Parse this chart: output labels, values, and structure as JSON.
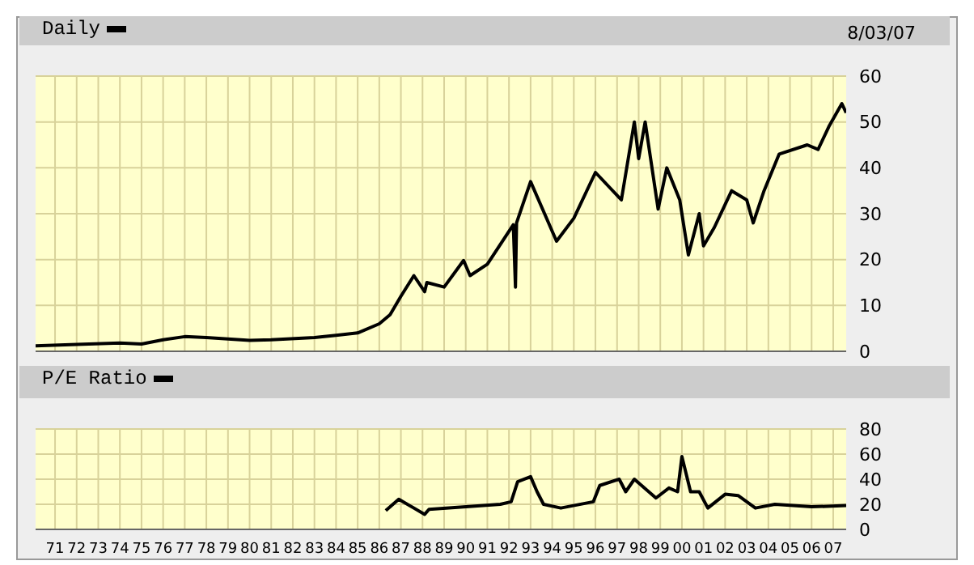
{
  "chart_data": [
    {
      "type": "line",
      "annotations": [
        "8/03/07"
      ],
      "legend": "top left",
      "grid": true,
      "tick_labels": "y",
      "x": [
        1970.1,
        1972,
        1974,
        1975,
        1976,
        1977,
        1978,
        1980,
        1981,
        1983,
        1984,
        1985,
        1986,
        1986.5,
        1987,
        1987.6,
        1988.1,
        1988.2,
        1989,
        1989.9,
        1990.2,
        1991,
        1992.2,
        1992.3,
        1992.35,
        1993,
        1994.2,
        1995,
        1996,
        1997.2,
        1997.8,
        1998,
        1998.3,
        1998.9,
        1999.3,
        1999.9,
        2000.3,
        2000.8,
        2001,
        2001.5,
        2002.3,
        2003,
        2003.3,
        2003.8,
        2004.5,
        2005.8,
        2006.3,
        2006.8,
        2007.4,
        2007.6
      ],
      "series": [
        {
          "name": "Daily",
          "color": "#000000",
          "values": [
            1.2,
            1.5,
            1.8,
            1.6,
            2.5,
            3.2,
            3,
            2.4,
            2.5,
            3,
            3.5,
            4,
            6,
            8,
            12,
            16.5,
            13,
            15,
            14,
            19.8,
            16.5,
            19,
            27.6,
            14,
            28,
            37,
            24,
            29,
            39,
            33,
            50,
            42,
            50,
            31,
            40,
            33,
            21,
            30,
            23,
            27,
            35,
            33,
            28,
            35,
            43,
            45,
            44,
            49,
            54,
            52
          ]
        }
      ],
      "xlim": [
        1970.1,
        2007.6
      ],
      "ylim": [
        0,
        60
      ],
      "yticks": [
        0,
        10,
        20,
        30,
        40,
        50,
        60
      ],
      "xticks": [
        {
          "value": 1971,
          "label": null
        },
        {
          "value": 1972,
          "label": null
        },
        {
          "value": 1973,
          "label": null
        },
        {
          "value": 1974,
          "label": null
        },
        {
          "value": 1975,
          "label": null
        },
        {
          "value": 1976,
          "label": null
        },
        {
          "value": 1977,
          "label": null
        },
        {
          "value": 1978,
          "label": null
        },
        {
          "value": 1979,
          "label": null
        },
        {
          "value": 1980,
          "label": null
        },
        {
          "value": 1981,
          "label": null
        },
        {
          "value": 1982,
          "label": null
        },
        {
          "value": 1983,
          "label": null
        },
        {
          "value": 1984,
          "label": null
        },
        {
          "value": 1985,
          "label": null
        },
        {
          "value": 1986,
          "label": null
        },
        {
          "value": 1987,
          "label": null
        },
        {
          "value": 1988,
          "label": null
        },
        {
          "value": 1989,
          "label": null
        },
        {
          "value": 1990,
          "label": null
        },
        {
          "value": 1991,
          "label": null
        },
        {
          "value": 1992,
          "label": null
        },
        {
          "value": 1993,
          "label": null
        },
        {
          "value": 1994,
          "label": null
        },
        {
          "value": 1995,
          "label": null
        },
        {
          "value": 1996,
          "label": null
        },
        {
          "value": 1997,
          "label": null
        },
        {
          "value": 1998,
          "label": null
        },
        {
          "value": 1999,
          "label": null
        },
        {
          "value": 2000,
          "label": null
        },
        {
          "value": 2001,
          "label": null
        },
        {
          "value": 2002,
          "label": null
        },
        {
          "value": 2003,
          "label": null
        },
        {
          "value": 2004,
          "label": null
        },
        {
          "value": 2005,
          "label": null
        },
        {
          "value": 2006,
          "label": null
        },
        {
          "value": 2007,
          "label": null
        }
      ]
    },
    {
      "type": "line",
      "legend": "top left",
      "grid": true,
      "x": [
        1986.3,
        1986.9,
        1988.1,
        1988.3,
        1991.6,
        1992.1,
        1992.4,
        1993,
        1993.3,
        1993.6,
        1994.4,
        1995.9,
        1996.2,
        1997.1,
        1997.4,
        1997.8,
        1998.8,
        1999.4,
        1999.8,
        2000,
        2000.4,
        2000.8,
        2001.2,
        2002,
        2002.6,
        2003.4,
        2004.3,
        2006,
        2007.6
      ],
      "series": [
        {
          "name": "P/E Ratio",
          "color": "#000000",
          "values": [
            15,
            24,
            12,
            16,
            20,
            22,
            38,
            42,
            30,
            20,
            17,
            22,
            35,
            40,
            30,
            40,
            25,
            33,
            30,
            58,
            30,
            30,
            17,
            28,
            27,
            17,
            20,
            18,
            19
          ]
        }
      ],
      "xlim": [
        1970.1,
        2007.6
      ],
      "ylim": [
        0,
        80
      ],
      "yticks": [
        0,
        20,
        40,
        60,
        80
      ],
      "xticks": [
        {
          "value": 1971,
          "label": "71"
        },
        {
          "value": 1972,
          "label": "72"
        },
        {
          "value": 1973,
          "label": "73"
        },
        {
          "value": 1974,
          "label": "74"
        },
        {
          "value": 1975,
          "label": "75"
        },
        {
          "value": 1976,
          "label": "76"
        },
        {
          "value": 1977,
          "label": "77"
        },
        {
          "value": 1978,
          "label": "78"
        },
        {
          "value": 1979,
          "label": "79"
        },
        {
          "value": 1980,
          "label": "80"
        },
        {
          "value": 1981,
          "label": "81"
        },
        {
          "value": 1982,
          "label": "82"
        },
        {
          "value": 1983,
          "label": "83"
        },
        {
          "value": 1984,
          "label": "84"
        },
        {
          "value": 1985,
          "label": "85"
        },
        {
          "value": 1986,
          "label": "86"
        },
        {
          "value": 1987,
          "label": "87"
        },
        {
          "value": 1988,
          "label": "88"
        },
        {
          "value": 1989,
          "label": "89"
        },
        {
          "value": 1990,
          "label": "90"
        },
        {
          "value": 1991,
          "label": "91"
        },
        {
          "value": 1992,
          "label": "92"
        },
        {
          "value": 1993,
          "label": "93"
        },
        {
          "value": 1994,
          "label": "94"
        },
        {
          "value": 1995,
          "label": "95"
        },
        {
          "value": 1996,
          "label": "96"
        },
        {
          "value": 1997,
          "label": "97"
        },
        {
          "value": 1998,
          "label": "98"
        },
        {
          "value": 1999,
          "label": "99"
        },
        {
          "value": 2000,
          "label": "00"
        },
        {
          "value": 2001,
          "label": "01"
        },
        {
          "value": 2002,
          "label": "02"
        },
        {
          "value": 2003,
          "label": "03"
        },
        {
          "value": 2004,
          "label": "04"
        },
        {
          "value": 2005,
          "label": "05"
        },
        {
          "value": 2006,
          "label": "06"
        },
        {
          "value": 2007,
          "label": "07"
        }
      ]
    }
  ]
}
